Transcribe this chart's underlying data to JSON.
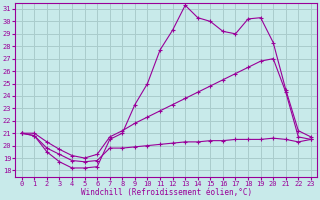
{
  "xlabel": "Windchill (Refroidissement éolien,°C)",
  "background_color": "#c8eaea",
  "line_color": "#990099",
  "grid_color": "#aacccc",
  "ylim": [
    17.5,
    31.5
  ],
  "xlim": [
    -0.5,
    23.5
  ],
  "yticks": [
    18,
    19,
    20,
    21,
    22,
    23,
    24,
    25,
    26,
    27,
    28,
    29,
    30,
    31
  ],
  "xticks": [
    0,
    1,
    2,
    3,
    4,
    5,
    6,
    7,
    8,
    9,
    10,
    11,
    12,
    13,
    14,
    15,
    16,
    17,
    18,
    19,
    20,
    21,
    22,
    23
  ],
  "line1_x": [
    0,
    1,
    2,
    3,
    4,
    5,
    6,
    7,
    8,
    9,
    10,
    11,
    12,
    13,
    14,
    15,
    16,
    17,
    18,
    19,
    20,
    21,
    22,
    23
  ],
  "line1_y": [
    21.0,
    20.8,
    19.5,
    18.7,
    18.2,
    18.2,
    18.3,
    20.5,
    21.0,
    23.3,
    25.0,
    27.7,
    29.3,
    31.3,
    30.3,
    30.0,
    29.2,
    29.0,
    30.2,
    30.3,
    28.3,
    24.5,
    21.2,
    20.7
  ],
  "line2_x": [
    0,
    1,
    2,
    3,
    4,
    5,
    6,
    7,
    8,
    9,
    10,
    11,
    12,
    13,
    14,
    15,
    16,
    17,
    18,
    19,
    20,
    21,
    22,
    23
  ],
  "line2_y": [
    21.0,
    21.0,
    20.3,
    19.7,
    19.2,
    19.0,
    19.3,
    20.7,
    21.2,
    21.8,
    22.3,
    22.8,
    23.3,
    23.8,
    24.3,
    24.8,
    25.3,
    25.8,
    26.3,
    26.8,
    27.0,
    24.3,
    20.7,
    20.5
  ],
  "line3_x": [
    0,
    1,
    2,
    3,
    4,
    5,
    6,
    7,
    8,
    9,
    10,
    11,
    12,
    13,
    14,
    15,
    16,
    17,
    18,
    19,
    20,
    21,
    22,
    23
  ],
  "line3_y": [
    21.0,
    20.8,
    19.8,
    19.3,
    18.8,
    18.7,
    18.8,
    19.8,
    19.8,
    19.9,
    20.0,
    20.1,
    20.2,
    20.3,
    20.3,
    20.4,
    20.4,
    20.5,
    20.5,
    20.5,
    20.6,
    20.5,
    20.3,
    20.5
  ]
}
